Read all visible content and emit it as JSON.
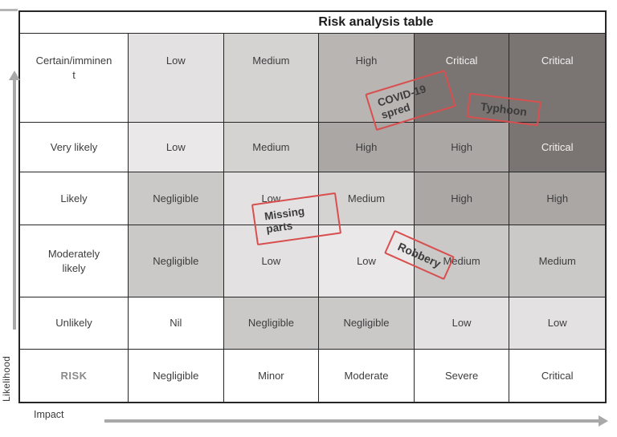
{
  "title": "Risk analysis table",
  "axes": {
    "y_label": "Likelihood",
    "x_label": "Impact"
  },
  "matrix": {
    "corner_label": "RISK",
    "impact_levels": [
      "Negligible",
      "Minor",
      "Moderate",
      "Severe",
      "Critical"
    ],
    "likelihood_levels": [
      "Certain/imminen\nt",
      "Very likely",
      "Likely",
      "Moderately\nlikely",
      "Unlikely"
    ],
    "rows": [
      {
        "likelihood": "Certain/imminent",
        "cells": [
          {
            "label": "Low",
            "tone": "t2"
          },
          {
            "label": "Medium",
            "tone": "t3"
          },
          {
            "label": "High",
            "tone": "t5"
          },
          {
            "label": "Critical",
            "tone": "t7"
          },
          {
            "label": "Critical",
            "tone": "t7"
          }
        ]
      },
      {
        "likelihood": "Very likely",
        "cells": [
          {
            "label": "Low",
            "tone": "t1"
          },
          {
            "label": "Medium",
            "tone": "t3"
          },
          {
            "label": "High",
            "tone": "t6"
          },
          {
            "label": "High",
            "tone": "t6"
          },
          {
            "label": "Critical",
            "tone": "t7"
          }
        ]
      },
      {
        "likelihood": "Likely",
        "cells": [
          {
            "label": "Negligible",
            "tone": "t4"
          },
          {
            "label": "Low",
            "tone": "t2"
          },
          {
            "label": "Medium",
            "tone": "t3"
          },
          {
            "label": "High",
            "tone": "t6"
          },
          {
            "label": "High",
            "tone": "t6"
          }
        ]
      },
      {
        "likelihood": "Moderately likely",
        "cells": [
          {
            "label": "Negligible",
            "tone": "t4"
          },
          {
            "label": "Low",
            "tone": "t2"
          },
          {
            "label": "Low",
            "tone": "t1"
          },
          {
            "label": "Medium",
            "tone": "t4"
          },
          {
            "label": "Medium",
            "tone": "t4"
          }
        ]
      },
      {
        "likelihood": "Unlikely",
        "cells": [
          {
            "label": "Nil",
            "tone": "t0"
          },
          {
            "label": "Negligible",
            "tone": "t4"
          },
          {
            "label": "Negligible",
            "tone": "t4"
          },
          {
            "label": "Low",
            "tone": "t2"
          },
          {
            "label": "Low",
            "tone": "t2"
          }
        ]
      }
    ]
  },
  "stamps": [
    {
      "name": "covid-stamp",
      "text": "COVID-19\nspred"
    },
    {
      "name": "typhoon-stamp",
      "text": "Typhoon"
    },
    {
      "name": "missing-parts-stamp",
      "text": "Missing\nparts"
    },
    {
      "name": "robbery-stamp",
      "text": "Robbery"
    }
  ],
  "colors": {
    "stamp_red": "#d84f4f",
    "axis_gray": "#a9a9a9",
    "border": "#262626",
    "risk_label_gray": "#8a8a8a",
    "cell_tones": {
      "t0": "#ffffff",
      "t1": "#eae8e8",
      "t2": "#e3e1e1",
      "t3": "#d5d2d2",
      "t4": "#cbc8c8",
      "t5": "#b9b5b3",
      "t6": "#aba7a5",
      "t7": "#7a7572"
    },
    "critical_text": "#f4f2f1"
  }
}
